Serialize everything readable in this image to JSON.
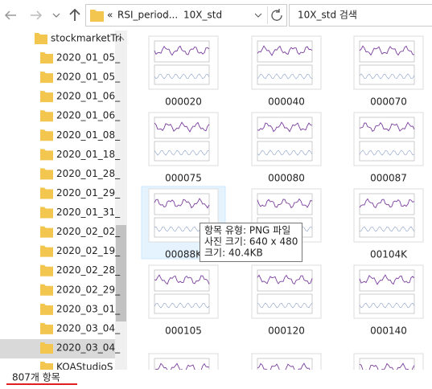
{
  "address": {
    "path": [
      "RSI_period...",
      "10X_std"
    ]
  },
  "search": {
    "placeholder": "10X_std 검색"
  },
  "sidebar": {
    "items": [
      "stockmarketTri",
      "2020_01_05_",
      "2020_01_05_",
      "2020_01_06_",
      "2020_01_06_",
      "2020_01_08_",
      "2020_01_18_",
      "2020_01_28_",
      "2020_01_29_",
      "2020_01_31_",
      "2020_02_02_",
      "2020_02_19_",
      "2020_02_28_",
      "2020_02_29_",
      "2020_03_01_",
      "2020_03_04_",
      "2020_03_04_",
      "KOAStudioS"
    ]
  },
  "files": [
    "000020",
    "000040",
    "000070",
    "000075",
    "000080",
    "000087",
    "00088K",
    "00104K",
    "000105",
    "000120",
    "000140"
  ],
  "tooltip": {
    "lines": [
      "항목 유형: PNG 파일",
      "사진 크기: 640 x 480",
      "크기: 40.4KB"
    ]
  },
  "status": {
    "count": "807개 항목"
  }
}
